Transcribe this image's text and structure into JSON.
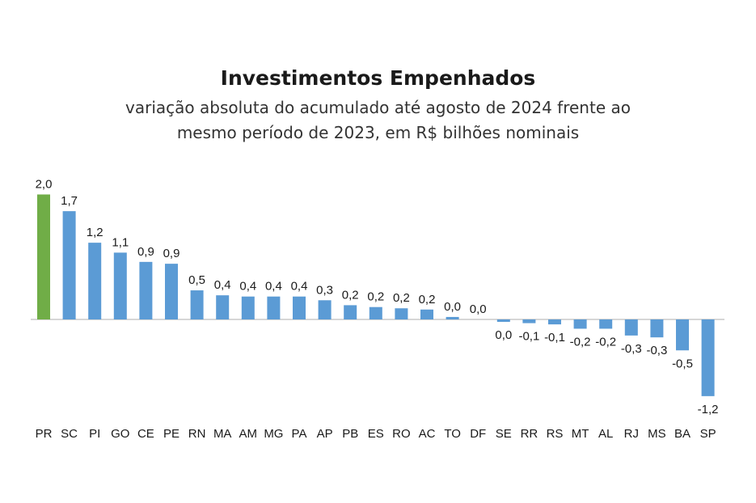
{
  "chart_data": {
    "type": "bar",
    "title": "Investimentos Empenhados",
    "subtitle_lines": [
      "variação absoluta do acumulado até agosto de 2024 frente ao",
      "mesmo período de 2023,  em R$ bilhões nominais"
    ],
    "categories": [
      "PR",
      "SC",
      "PI",
      "GO",
      "CE",
      "PE",
      "RN",
      "MA",
      "AM",
      "MG",
      "PA",
      "AP",
      "PB",
      "ES",
      "RO",
      "AC",
      "TO",
      "DF",
      "SE",
      "RR",
      "RS",
      "MT",
      "AL",
      "RJ",
      "MS",
      "BA",
      "SP"
    ],
    "values": [
      2.02,
      1.75,
      1.24,
      1.08,
      0.93,
      0.9,
      0.47,
      0.39,
      0.37,
      0.37,
      0.37,
      0.31,
      0.23,
      0.2,
      0.18,
      0.16,
      0.04,
      0.0,
      -0.04,
      -0.06,
      -0.08,
      -0.15,
      -0.15,
      -0.26,
      -0.29,
      -0.5,
      -1.24
    ],
    "labels": [
      "2,0",
      "1,7",
      "1,2",
      "1,1",
      "0,9",
      "0,9",
      "0,5",
      "0,4",
      "0,4",
      "0,4",
      "0,4",
      "0,3",
      "0,2",
      "0,2",
      "0,2",
      "0,2",
      "0,0",
      "0,0",
      "0,0",
      "-0,1",
      "-0,1",
      "-0,2",
      "-0,2",
      "-0,3",
      "-0,3",
      "-0,5",
      "-1,2"
    ],
    "highlight_index": 0,
    "colors": {
      "default": "#5b9bd5",
      "highlight": "#70ad47",
      "axis": "#c8c8c8"
    },
    "xlabel": "",
    "ylabel": "",
    "grid": false,
    "legend": "none"
  }
}
